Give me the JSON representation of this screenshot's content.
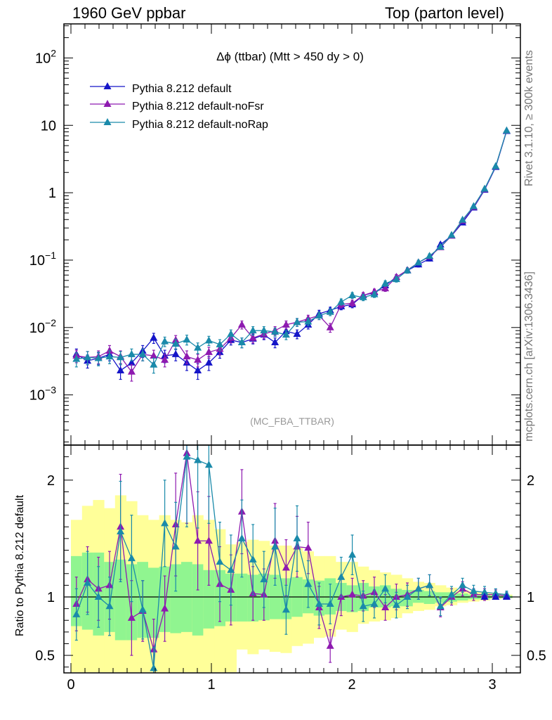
{
  "header": {
    "left": "1960 GeV ppbar",
    "right": "Top (parton level)",
    "side_top": "Rivet 3.1.10, ≥ 300k events",
    "side_bottom": "mcplots.cern.ch [arXiv:1306.3436]"
  },
  "chart_data": [
    {
      "type": "line",
      "title": "Δϕ (ttbar) (Mtt > 450 dy > 0)",
      "watermark": "(MC_FBA_TTBAR)",
      "yscale": "log",
      "ylim": [
        0.00018,
        320
      ],
      "xlim": [
        -0.05,
        3.2
      ],
      "legend_position": "top-left",
      "y_tick_labels": [
        {
          "value": 100,
          "base": "10",
          "exp": "2"
        },
        {
          "value": 10,
          "base": "10",
          "exp": ""
        },
        {
          "value": 1,
          "base": "1",
          "exp": ""
        },
        {
          "value": 0.1,
          "base": "10",
          "exp": "−1"
        },
        {
          "value": 0.01,
          "base": "10",
          "exp": "−2"
        },
        {
          "value": 0.001,
          "base": "10",
          "exp": "−3"
        }
      ],
      "x": [
        0.039,
        0.118,
        0.196,
        0.275,
        0.353,
        0.432,
        0.511,
        0.589,
        0.668,
        0.746,
        0.825,
        0.903,
        0.982,
        1.06,
        1.139,
        1.217,
        1.296,
        1.374,
        1.453,
        1.532,
        1.61,
        1.689,
        1.767,
        1.846,
        1.924,
        2.003,
        2.081,
        2.16,
        2.238,
        2.317,
        2.395,
        2.474,
        2.553,
        2.631,
        2.71,
        2.788,
        2.867,
        2.945,
        3.024,
        3.102
      ],
      "series": [
        {
          "name": "Pythia 8.212 default",
          "color": "#1515c8",
          "values": [
            0.004,
            0.0032,
            0.0035,
            0.004,
            0.0023,
            0.003,
            0.0045,
            0.007,
            0.0038,
            0.004,
            0.003,
            0.0023,
            0.003,
            0.0043,
            0.0065,
            0.006,
            0.0068,
            0.0078,
            0.006,
            0.0088,
            0.008,
            0.011,
            0.016,
            0.018,
            0.0205,
            0.022,
            0.03,
            0.033,
            0.042,
            0.056,
            0.07,
            0.086,
            0.105,
            0.17,
            0.23,
            0.36,
            0.6,
            1.1,
            2.4,
            8.2
          ],
          "err": [
            0.0008,
            0.0007,
            0.0007,
            0.0008,
            0.0006,
            0.0007,
            0.0009,
            0.0012,
            0.0008,
            0.0008,
            0.0007,
            0.0006,
            0.0007,
            0.0008,
            0.001,
            0.001,
            0.0011,
            0.0012,
            0.001,
            0.0013,
            0.0012,
            0.0015,
            0.002,
            0.002,
            0.0022,
            0.0024,
            0.003,
            0.0032,
            0.004,
            0.005,
            0.006,
            0.007,
            0.008,
            0.012,
            0.015,
            0.02,
            0.03,
            0.05,
            0.1,
            0.2
          ]
        },
        {
          "name": "Pythia 8.212 default-noFsr",
          "color": "#8e1ab0",
          "values": [
            0.0038,
            0.0036,
            0.0037,
            0.0045,
            0.0037,
            0.0022,
            0.004,
            0.0038,
            0.0033,
            0.0065,
            0.0037,
            0.0033,
            0.0043,
            0.0048,
            0.007,
            0.011,
            0.007,
            0.008,
            0.009,
            0.011,
            0.012,
            0.0135,
            0.015,
            0.01,
            0.022,
            0.023,
            0.03,
            0.034,
            0.038,
            0.056,
            0.071,
            0.092,
            0.113,
            0.155,
            0.23,
            0.385,
            0.615,
            1.12,
            2.45,
            8.3
          ],
          "err": [
            0.0008,
            0.0008,
            0.0008,
            0.0009,
            0.0008,
            0.0006,
            0.0008,
            0.0008,
            0.0007,
            0.0011,
            0.0008,
            0.0007,
            0.0008,
            0.0009,
            0.0011,
            0.0015,
            0.0011,
            0.0012,
            0.0013,
            0.0015,
            0.0016,
            0.0017,
            0.0019,
            0.0015,
            0.0024,
            0.0025,
            0.003,
            0.0032,
            0.0037,
            0.005,
            0.006,
            0.0073,
            0.0085,
            0.011,
            0.015,
            0.021,
            0.03,
            0.05,
            0.1,
            0.2
          ]
        },
        {
          "name": "Pythia 8.212 default-noRap",
          "color": "#1a8aaa",
          "values": [
            0.0034,
            0.0036,
            0.0035,
            0.0037,
            0.0036,
            0.004,
            0.004,
            0.0028,
            0.0062,
            0.0057,
            0.0066,
            0.005,
            0.0064,
            0.0056,
            0.008,
            0.006,
            0.009,
            0.009,
            0.0086,
            0.0078,
            0.012,
            0.0122,
            0.015,
            0.017,
            0.024,
            0.03,
            0.028,
            0.031,
            0.045,
            0.052,
            0.07,
            0.092,
            0.115,
            0.157,
            0.235,
            0.395,
            0.63,
            1.14,
            2.47,
            8.35
          ],
          "err": [
            0.0008,
            0.0008,
            0.0008,
            0.0008,
            0.0008,
            0.0008,
            0.0008,
            0.0007,
            0.001,
            0.001,
            0.0011,
            0.0009,
            0.001,
            0.001,
            0.0012,
            0.001,
            0.0013,
            0.0013,
            0.0012,
            0.0012,
            0.0016,
            0.0016,
            0.0019,
            0.002,
            0.0025,
            0.003,
            0.003,
            0.0031,
            0.0042,
            0.0048,
            0.006,
            0.0073,
            0.0086,
            0.011,
            0.015,
            0.0215,
            0.031,
            0.05,
            0.1,
            0.2
          ]
        }
      ]
    },
    {
      "type": "line",
      "ylabel": "Ratio to Pythia 8.212 default",
      "ylim": [
        0.35,
        2.3
      ],
      "xlim": [
        -0.05,
        3.2
      ],
      "reference_line": 1,
      "y_tick_labels": [
        "0.5",
        "1",
        "2"
      ],
      "x_tick_labels": [
        "0",
        "1",
        "2",
        "3"
      ],
      "band_edges": [
        0.0,
        0.079,
        0.157,
        0.236,
        0.314,
        0.393,
        0.471,
        0.55,
        0.628,
        0.707,
        0.785,
        0.864,
        0.942,
        1.021,
        1.1,
        1.178,
        1.257,
        1.335,
        1.414,
        1.492,
        1.571,
        1.649,
        1.728,
        1.806,
        1.885,
        1.963,
        2.042,
        2.12,
        2.199,
        2.277,
        2.356,
        2.434,
        2.513,
        2.592,
        2.67,
        2.749,
        2.827,
        2.906,
        2.984,
        3.063,
        3.141
      ],
      "band_yellow_low": [
        0.3,
        0.3,
        0.3,
        0.3,
        0.3,
        0.3,
        0.3,
        0.3,
        0.3,
        0.3,
        0.3,
        0.3,
        0.3,
        0.3,
        0.3,
        0.55,
        0.51,
        0.55,
        0.53,
        0.52,
        0.58,
        0.6,
        0.65,
        0.66,
        0.72,
        0.7,
        0.77,
        0.79,
        0.8,
        0.82,
        0.86,
        0.88,
        0.89,
        0.92,
        0.93,
        0.95,
        0.96,
        0.97,
        0.98,
        0.99
      ],
      "band_yellow_high": [
        1.66,
        1.78,
        1.83,
        1.76,
        1.87,
        1.82,
        1.7,
        1.66,
        1.7,
        1.66,
        1.64,
        1.7,
        1.66,
        1.58,
        1.45,
        1.47,
        1.49,
        1.48,
        1.44,
        1.44,
        1.42,
        1.39,
        1.35,
        1.35,
        1.3,
        1.3,
        1.26,
        1.23,
        1.21,
        1.19,
        1.16,
        1.13,
        1.12,
        1.1,
        1.08,
        1.06,
        1.05,
        1.04,
        1.03,
        1.02
      ],
      "band_green_low": [
        0.75,
        0.72,
        0.67,
        0.7,
        0.63,
        0.63,
        0.65,
        0.65,
        0.7,
        0.69,
        0.7,
        0.67,
        0.73,
        0.75,
        0.79,
        0.79,
        0.79,
        0.8,
        0.81,
        0.81,
        0.83,
        0.86,
        0.84,
        0.85,
        0.88,
        0.87,
        0.88,
        0.91,
        0.91,
        0.92,
        0.92,
        0.95,
        0.94,
        0.95,
        0.96,
        0.97,
        0.98,
        0.98,
        0.99,
        0.99
      ],
      "band_green_high": [
        1.35,
        1.38,
        1.38,
        1.3,
        1.32,
        1.28,
        1.3,
        1.25,
        1.26,
        1.28,
        1.3,
        1.28,
        1.23,
        1.23,
        1.2,
        1.2,
        1.19,
        1.2,
        1.19,
        1.16,
        1.17,
        1.15,
        1.14,
        1.16,
        1.12,
        1.1,
        1.12,
        1.09,
        1.1,
        1.07,
        1.06,
        1.06,
        1.05,
        1.04,
        1.04,
        1.03,
        1.02,
        1.02,
        1.01,
        1.01
      ],
      "series": [
        {
          "name": "Pythia 8.212 default-noFsr",
          "values": [
            0.94,
            1.15,
            1.07,
            1.1,
            1.6,
            0.82,
            0.88,
            0.55,
            0.9,
            1.62,
            2.23,
            1.48,
            1.48,
            1.11,
            1.06,
            1.73,
            1.03,
            1.02,
            1.48,
            1.25,
            1.43,
            1.42,
            0.91,
            0.58,
            1.0,
            1.02,
            1.01,
            1.04,
            0.91,
            1.0,
            1.02,
            1.07,
            1.1,
            0.91,
            1.0,
            1.07,
            1.02,
            1.02,
            1.02,
            1.01
          ],
          "err": [
            0.23,
            0.28,
            0.27,
            0.29,
            0.45,
            0.32,
            0.26,
            0.26,
            0.28,
            0.44,
            0.6,
            0.42,
            0.38,
            0.32,
            0.3,
            0.36,
            0.23,
            0.22,
            0.32,
            0.24,
            0.26,
            0.22,
            0.18,
            0.14,
            0.16,
            0.14,
            0.13,
            0.13,
            0.11,
            0.11,
            0.1,
            0.09,
            0.09,
            0.08,
            0.07,
            0.06,
            0.05,
            0.05,
            0.04,
            0.03
          ]
        },
        {
          "name": "Pythia 8.212 default-noRap",
          "color": "#1a8aaa",
          "values": [
            0.85,
            1.12,
            1.0,
            0.92,
            1.56,
            1.33,
            0.89,
            0.39,
            1.63,
            1.43,
            2.2,
            2.17,
            2.13,
            1.3,
            1.23,
            1.5,
            1.32,
            1.15,
            1.43,
            0.89,
            1.5,
            1.11,
            0.94,
            0.94,
            1.17,
            1.36,
            0.92,
            0.94,
            1.07,
            0.93,
            1.0,
            1.07,
            1.1,
            0.92,
            1.02,
            1.1,
            1.05,
            1.04,
            1.03,
            1.02
          ],
          "err": [
            0.22,
            0.27,
            0.26,
            0.25,
            0.43,
            0.37,
            0.25,
            0.18,
            0.37,
            0.38,
            0.6,
            0.58,
            0.5,
            0.34,
            0.3,
            0.33,
            0.3,
            0.24,
            0.33,
            0.21,
            0.28,
            0.2,
            0.18,
            0.17,
            0.17,
            0.17,
            0.13,
            0.12,
            0.12,
            0.11,
            0.1,
            0.09,
            0.09,
            0.08,
            0.07,
            0.06,
            0.05,
            0.05,
            0.04,
            0.03
          ]
        }
      ]
    }
  ]
}
